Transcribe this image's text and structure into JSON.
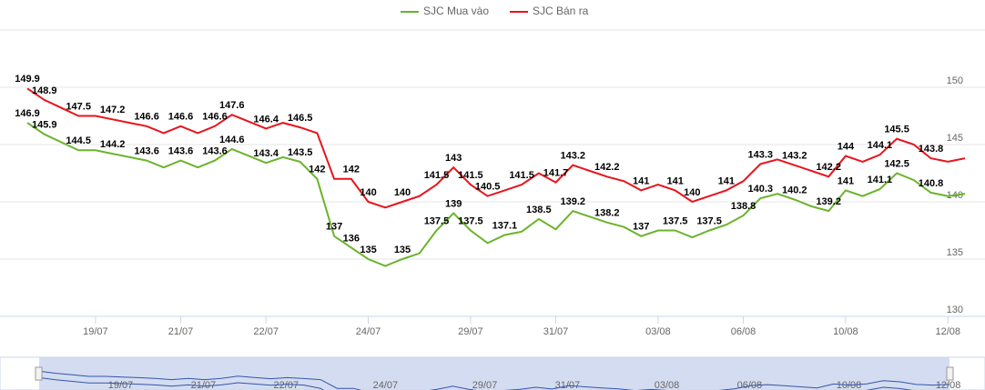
{
  "chart_data": {
    "type": "line",
    "categories": [
      null,
      null,
      null,
      null,
      "19/07",
      null,
      null,
      null,
      null,
      "21/07",
      null,
      null,
      null,
      null,
      "22/07",
      null,
      null,
      null,
      null,
      null,
      "24/07",
      null,
      null,
      null,
      null,
      null,
      "29/07",
      null,
      null,
      null,
      null,
      "31/07",
      null,
      null,
      null,
      null,
      null,
      "03/08",
      null,
      null,
      null,
      null,
      "06/08",
      null,
      null,
      null,
      null,
      null,
      "10/08",
      null,
      null,
      null,
      null,
      null,
      "12/08",
      null
    ],
    "series": [
      {
        "name": "SJC Mua vào",
        "color": "#6ab42b",
        "values": [
          146.9,
          145.9,
          145.2,
          144.5,
          144.5,
          144.2,
          143.9,
          143.6,
          143.0,
          143.6,
          143.0,
          143.6,
          144.6,
          144.0,
          143.4,
          143.9,
          143.5,
          142,
          137,
          136,
          135,
          134.4,
          135,
          135.5,
          137.5,
          139,
          137.5,
          136.4,
          137.1,
          137.4,
          138.5,
          137.6,
          139.2,
          138.7,
          138.2,
          137.8,
          137,
          137.5,
          137.5,
          136.9,
          137.5,
          138.0,
          138.8,
          140.3,
          140.7,
          140.2,
          139.6,
          139.2,
          141,
          140.5,
          141.1,
          142.5,
          141.9,
          140.8,
          140.5,
          140.7
        ],
        "value_labels": [
          "146.9",
          "145.9",
          null,
          "144.5",
          null,
          "144.2",
          null,
          "143.6",
          null,
          "143.6",
          null,
          "143.6",
          "144.6",
          null,
          "143.4",
          null,
          "143.5",
          "142",
          "137",
          "136",
          "135",
          null,
          "135",
          null,
          "137.5",
          "139",
          "137.5",
          null,
          "137.1",
          null,
          "138.5",
          null,
          "139.2",
          null,
          "138.2",
          null,
          "137",
          null,
          "137.5",
          null,
          "137.5",
          null,
          "138.8",
          "140.3",
          null,
          "140.2",
          null,
          "139.2",
          "141",
          null,
          "141.1",
          "142.5",
          null,
          "140.8",
          null,
          null
        ]
      },
      {
        "name": "SJC Bán ra",
        "color": "#e8141b",
        "values": [
          149.9,
          148.9,
          148.2,
          147.5,
          147.5,
          147.2,
          146.9,
          146.6,
          146.0,
          146.6,
          146.0,
          146.6,
          147.6,
          147.0,
          146.4,
          146.9,
          146.5,
          146.0,
          142,
          142,
          140,
          139.5,
          140,
          140.5,
          141.5,
          143,
          141.5,
          140.5,
          141,
          141.5,
          142.5,
          141.7,
          143.2,
          142.7,
          142.2,
          141.8,
          141,
          141.5,
          141,
          140,
          140.5,
          141,
          141.8,
          143.3,
          143.7,
          143.2,
          142.7,
          142.2,
          144,
          143.5,
          144.1,
          145.5,
          145,
          143.8,
          143.5,
          143.8
        ],
        "value_labels": [
          "149.9",
          "148.9",
          null,
          "147.5",
          null,
          "147.2",
          null,
          "146.6",
          null,
          "146.6",
          null,
          "146.6",
          "147.6",
          null,
          "146.4",
          null,
          "146.5",
          null,
          null,
          "142",
          "140",
          null,
          "140",
          null,
          "141.5",
          "143",
          "141.5",
          "140.5",
          null,
          "141.5",
          null,
          "141.7",
          "143.2",
          null,
          "142.2",
          null,
          "141",
          null,
          "141",
          "140",
          null,
          "141",
          null,
          "143.3",
          null,
          "143.2",
          null,
          "142.2",
          "144",
          null,
          "144.1",
          "145.5",
          null,
          "143.8",
          null,
          null
        ]
      }
    ],
    "ylim": [
      130,
      155
    ],
    "yticks": [
      130,
      135,
      140,
      145,
      150
    ],
    "grid": true
  }
}
